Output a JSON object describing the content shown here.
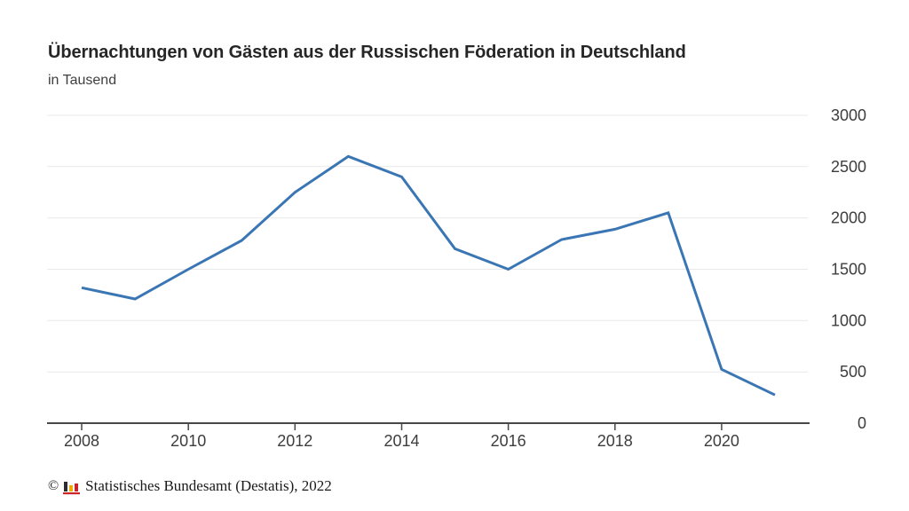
{
  "chart_data": {
    "type": "line",
    "title": "Übernachtungen von Gästen aus der Russischen Föderation in Deutschland",
    "subtitle": "in Tausend",
    "xlabel": "",
    "ylabel": "",
    "x": [
      2008,
      2009,
      2010,
      2011,
      2012,
      2013,
      2014,
      2015,
      2016,
      2017,
      2018,
      2019,
      2020,
      2021
    ],
    "values": [
      1320,
      1210,
      1500,
      1780,
      2250,
      2600,
      2400,
      1700,
      1500,
      1790,
      1890,
      2050,
      525,
      275
    ],
    "ylim": [
      0,
      3000
    ],
    "yticks": [
      0,
      500,
      1000,
      1500,
      2000,
      2500,
      3000
    ],
    "xticks": [
      2008,
      2010,
      2012,
      2014,
      2016,
      2018,
      2020
    ],
    "grid": true,
    "legend": false,
    "y_axis_side": "right"
  },
  "colors": {
    "line": "#3b76b4",
    "grid": "#e9e9e9",
    "axis": "#474747",
    "tick_text": "#3d3d3d",
    "title_text": "#262626"
  },
  "footer": {
    "copyright": "©",
    "source": "Statistisches Bundesamt (Destatis), 2022",
    "logo": {
      "name": "destatis-logo",
      "bar_colors": [
        "#2d2d2d",
        "#f0aa00",
        "#cc2229"
      ],
      "baseline_color": "#cc2229"
    }
  }
}
